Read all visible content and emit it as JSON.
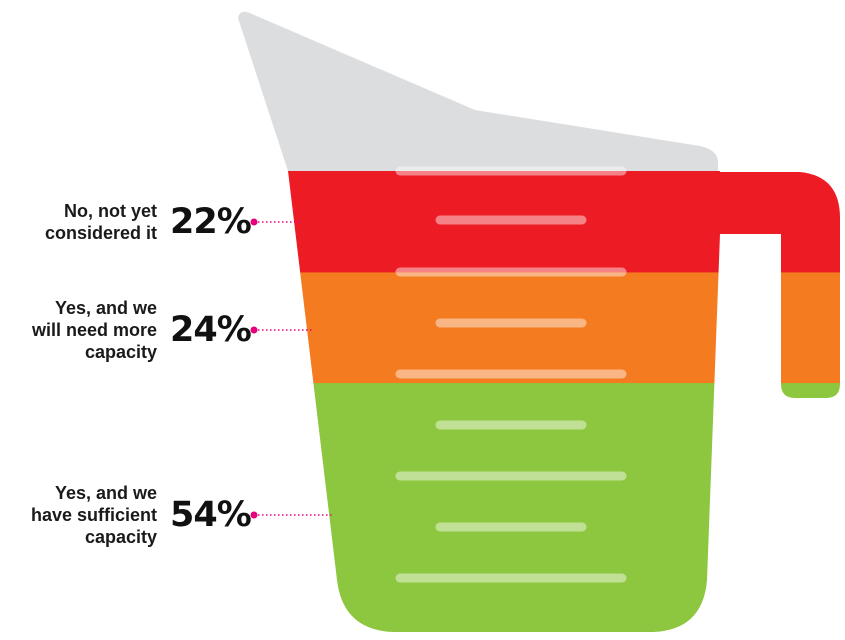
{
  "chart_data": {
    "type": "stacked-bar",
    "title": "",
    "unit": "%",
    "categories": [
      {
        "label_lines": [
          "No, not yet",
          "considered it"
        ],
        "value": 22,
        "value_label": "22%",
        "color": "#ed1c24"
      },
      {
        "label_lines": [
          "Yes, and we",
          "will need more",
          "capacity"
        ],
        "value": 24,
        "value_label": "24%",
        "color": "#f47b20"
      },
      {
        "label_lines": [
          "Yes, and we",
          "have sufficient",
          "capacity"
        ],
        "value": 54,
        "value_label": "54%",
        "color": "#8dc63f"
      }
    ],
    "empty_color": "#dcdddf",
    "connector_color": "#e6007e",
    "style": "measuring-jug pictogram, stacked from bottom to top"
  }
}
